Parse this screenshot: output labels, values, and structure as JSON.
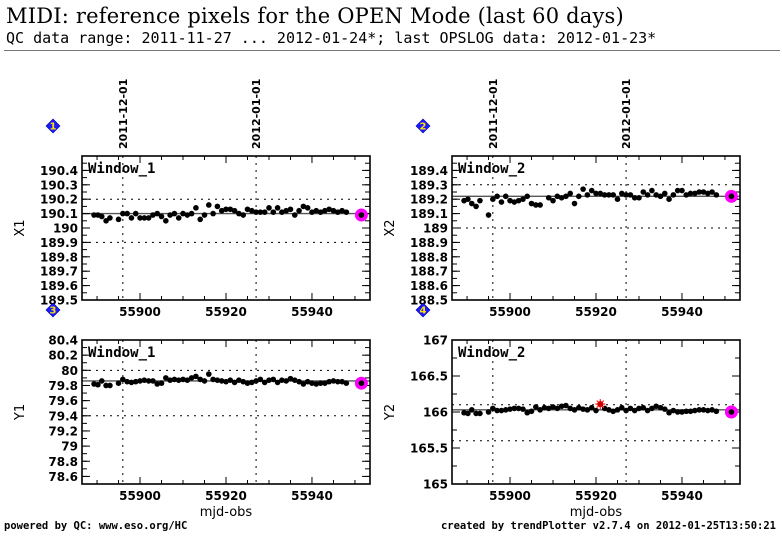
{
  "header": {
    "title": "MIDI: reference pixels for the OPEN Mode (last 60 days)",
    "subtitle": "QC data range: 2011-11-27 ... 2012-01-24*; last OPSLOG data: 2012-01-23*"
  },
  "footer": {
    "left": "powered by QC: www.eso.org/HC",
    "right": "created by trendPlotter v2.7.4 on 2012-01-25T13:50:21"
  },
  "colors": {
    "points": "#000000",
    "latest_highlight": "#ff00ff",
    "outlier": "#cc0000",
    "badge": "#1a1aff",
    "badge_text": "#ffe000",
    "grid": "#000000",
    "reference_line": "#555555"
  },
  "chart_data": [
    {
      "type": "scatter",
      "badge": "1",
      "panel_label": "Window_1",
      "xlabel": "",
      "ylabel": "X1",
      "xlim": [
        55886.5,
        55953.5
      ],
      "ylim": [
        189.5,
        190.5
      ],
      "xticks": [
        55900,
        55920,
        55940
      ],
      "xtick_labels": [
        "55900",
        "55920",
        "55940"
      ],
      "show_xtick_labels": true,
      "yticks": [
        189.5,
        189.6,
        189.7,
        189.8,
        189.9,
        190,
        190.1,
        190.2,
        190.3,
        190.4
      ],
      "ytick_labels": [
        "189.5",
        "189.6",
        "189.7",
        "189.8",
        "189.9",
        "190",
        "190.1",
        "190.2",
        "190.3",
        "190.4"
      ],
      "reference": 190.1,
      "threshold_lines": [
        189.9,
        190.2
      ],
      "date_markers": [
        {
          "x": 55896,
          "label": "2011-12-01"
        },
        {
          "x": 55927,
          "label": "2012-01-01"
        }
      ],
      "show_date_labels": true,
      "x": [
        55889.3,
        55890.2,
        55891.1,
        55892.1,
        55893.0,
        55895.0,
        55896.0,
        55897.0,
        55898.0,
        55899.0,
        55900.0,
        55901.0,
        55902.0,
        55903.0,
        55904.0,
        55905.0,
        55906.0,
        55907.0,
        55908.0,
        55909.0,
        55910.0,
        55911.0,
        55912.0,
        55913.0,
        55914.0,
        55915.0,
        55916.0,
        55917.0,
        55918.0,
        55919.0,
        55920.0,
        55921.0,
        55922.0,
        55923.0,
        55924.0,
        55925.0,
        55926.0,
        55927.0,
        55928.0,
        55929.0,
        55930.0,
        55931.0,
        55932.0,
        55933.0,
        55934.0,
        55935.0,
        55936.0,
        55937.0,
        55938.0,
        55939.0,
        55940.0,
        55941.0,
        55942.0,
        55943.0,
        55944.0,
        55945.0,
        55946.0,
        55947.0,
        55948.0
      ],
      "values": [
        190.09,
        190.09,
        190.08,
        190.05,
        190.07,
        190.06,
        190.1,
        190.1,
        190.07,
        190.1,
        190.07,
        190.07,
        190.07,
        190.09,
        190.1,
        190.08,
        190.05,
        190.09,
        190.1,
        190.07,
        190.1,
        190.09,
        190.1,
        190.14,
        190.06,
        190.09,
        190.16,
        190.1,
        190.15,
        190.12,
        190.13,
        190.13,
        190.12,
        190.1,
        190.09,
        190.13,
        190.12,
        190.11,
        190.11,
        190.11,
        190.14,
        190.11,
        190.14,
        190.11,
        190.12,
        190.13,
        190.09,
        190.12,
        190.15,
        190.14,
        190.11,
        190.12,
        190.11,
        190.12,
        190.13,
        190.12,
        190.11,
        190.12,
        190.11
      ],
      "latest": {
        "x": 55951.5,
        "value": 190.09
      }
    },
    {
      "type": "scatter",
      "badge": "2",
      "panel_label": "Window_2",
      "xlabel": "",
      "ylabel": "X2",
      "xlim": [
        55886.5,
        55953.5
      ],
      "ylim": [
        188.5,
        189.5
      ],
      "xticks": [
        55900,
        55920,
        55940
      ],
      "xtick_labels": [
        "55900",
        "55920",
        "55940"
      ],
      "show_xtick_labels": true,
      "yticks": [
        188.5,
        188.6,
        188.7,
        188.8,
        188.9,
        189,
        189.1,
        189.2,
        189.3,
        189.4
      ],
      "ytick_labels": [
        "188.5",
        "188.6",
        "188.7",
        "188.8",
        "188.9",
        "189",
        "189.1",
        "189.2",
        "189.3",
        "189.4"
      ],
      "reference": 189.22,
      "threshold_lines": [
        189.0,
        189.3
      ],
      "date_markers": [
        {
          "x": 55896,
          "label": "2011-12-01"
        },
        {
          "x": 55927,
          "label": "2012-01-01"
        }
      ],
      "show_date_labels": true,
      "x": [
        55889.3,
        55890.2,
        55891.1,
        55892.1,
        55893.0,
        55895.0,
        55896.0,
        55897.0,
        55898.0,
        55899.0,
        55900.0,
        55901.0,
        55902.0,
        55903.0,
        55904.0,
        55905.0,
        55906.0,
        55907.0,
        55909.0,
        55910.0,
        55911.0,
        55912.0,
        55913.0,
        55914.0,
        55915.0,
        55916.0,
        55917.0,
        55918.0,
        55919.0,
        55920.0,
        55921.0,
        55922.0,
        55923.0,
        55924.0,
        55925.0,
        55926.0,
        55927.0,
        55928.0,
        55929.0,
        55930.0,
        55931.0,
        55932.0,
        55933.0,
        55934.0,
        55935.0,
        55936.0,
        55937.0,
        55938.0,
        55939.0,
        55940.0,
        55941.0,
        55942.0,
        55943.0,
        55944.0,
        55945.0,
        55946.0,
        55947.0,
        55948.0
      ],
      "values": [
        189.19,
        189.2,
        189.17,
        189.15,
        189.19,
        189.09,
        189.2,
        189.22,
        189.18,
        189.22,
        189.19,
        189.18,
        189.19,
        189.2,
        189.22,
        189.17,
        189.16,
        189.16,
        189.21,
        189.19,
        189.22,
        189.21,
        189.22,
        189.24,
        189.17,
        189.22,
        189.27,
        189.23,
        189.26,
        189.24,
        189.24,
        189.23,
        189.23,
        189.23,
        189.2,
        189.24,
        189.23,
        189.23,
        189.21,
        189.21,
        189.25,
        189.23,
        189.26,
        189.23,
        189.22,
        189.24,
        189.2,
        189.23,
        189.26,
        189.26,
        189.23,
        189.24,
        189.24,
        189.25,
        189.25,
        189.24,
        189.25,
        189.23
      ],
      "latest": {
        "x": 55951.5,
        "value": 189.22
      }
    },
    {
      "type": "scatter",
      "badge": "3",
      "panel_label": "Window_1",
      "xlabel": "mjd-obs",
      "ylabel": "Y1",
      "xlim": [
        55886.5,
        55953.5
      ],
      "ylim": [
        78.5,
        80.4
      ],
      "xticks": [
        55900,
        55920,
        55940
      ],
      "xtick_labels": [
        "55900",
        "55920",
        "55940"
      ],
      "show_xtick_labels": true,
      "yticks": [
        78.6,
        78.8,
        79,
        79.2,
        79.4,
        79.6,
        79.8,
        80,
        80.2,
        80.4
      ],
      "ytick_labels": [
        "78.6",
        "78.8",
        "79",
        "79.2",
        "79.4",
        "79.6",
        "79.8",
        "80",
        "80.2",
        "80.4"
      ],
      "reference": 79.86,
      "threshold_lines": [
        79.4,
        80.0
      ],
      "date_markers": [
        {
          "x": 55896,
          "label": "2011-12-01"
        },
        {
          "x": 55927,
          "label": "2012-01-01"
        }
      ],
      "show_date_labels": false,
      "x": [
        55889.3,
        55890.2,
        55891.1,
        55892.1,
        55893.0,
        55895.0,
        55896.0,
        55897.0,
        55898.0,
        55899.0,
        55900.0,
        55901.0,
        55902.0,
        55903.0,
        55904.0,
        55905.0,
        55906.0,
        55907.0,
        55908.0,
        55909.0,
        55910.0,
        55911.0,
        55912.0,
        55913.0,
        55914.0,
        55915.0,
        55916.0,
        55917.0,
        55918.0,
        55919.0,
        55920.0,
        55921.0,
        55922.0,
        55923.0,
        55924.0,
        55925.0,
        55926.0,
        55927.0,
        55928.0,
        55929.0,
        55930.0,
        55931.0,
        55932.0,
        55933.0,
        55934.0,
        55935.0,
        55936.0,
        55937.0,
        55938.0,
        55939.0,
        55940.0,
        55941.0,
        55942.0,
        55943.0,
        55944.0,
        55945.0,
        55946.0,
        55947.0,
        55948.0
      ],
      "values": [
        79.82,
        79.81,
        79.86,
        79.8,
        79.8,
        79.83,
        79.88,
        79.85,
        79.84,
        79.85,
        79.86,
        79.87,
        79.86,
        79.86,
        79.82,
        79.83,
        79.9,
        79.87,
        79.88,
        79.87,
        79.88,
        79.87,
        79.9,
        79.92,
        79.88,
        79.86,
        79.95,
        79.88,
        79.87,
        79.86,
        79.85,
        79.87,
        79.84,
        79.87,
        79.85,
        79.83,
        79.84,
        79.86,
        79.88,
        79.84,
        79.87,
        79.88,
        79.84,
        79.87,
        79.86,
        79.89,
        79.87,
        79.85,
        79.82,
        79.85,
        79.83,
        79.82,
        79.83,
        79.83,
        79.85,
        79.86,
        79.85,
        79.85,
        79.83
      ],
      "latest": {
        "x": 55951.5,
        "value": 79.83
      }
    },
    {
      "type": "scatter",
      "badge": "4",
      "panel_label": "Window_2",
      "xlabel": "mjd-obs",
      "ylabel": "Y2",
      "xlim": [
        55886.5,
        55953.5
      ],
      "ylim": [
        165,
        167
      ],
      "xticks": [
        55900,
        55920,
        55940
      ],
      "xtick_labels": [
        "55900",
        "55920",
        "55940"
      ],
      "show_xtick_labels": true,
      "yticks": [
        165,
        165.5,
        166,
        166.5,
        167
      ],
      "ytick_labels": [
        "165",
        "165.5",
        "166",
        "166.5",
        "167"
      ],
      "reference": 166.03,
      "threshold_lines": [
        165.6,
        166.1
      ],
      "date_markers": [
        {
          "x": 55896,
          "label": "2011-12-01"
        },
        {
          "x": 55927,
          "label": "2012-01-01"
        }
      ],
      "show_date_labels": false,
      "x": [
        55889.3,
        55890.2,
        55891.1,
        55892.1,
        55893.0,
        55895.0,
        55896.0,
        55897.0,
        55898.0,
        55899.0,
        55900.0,
        55901.0,
        55902.0,
        55903.0,
        55904.0,
        55905.0,
        55906.0,
        55907.0,
        55908.0,
        55909.0,
        55910.0,
        55911.0,
        55912.0,
        55913.0,
        55914.0,
        55915.0,
        55916.0,
        55917.0,
        55918.0,
        55919.0,
        55920.0,
        55922.0,
        55923.0,
        55924.0,
        55925.0,
        55926.0,
        55927.0,
        55928.0,
        55929.0,
        55930.0,
        55931.0,
        55932.0,
        55933.0,
        55934.0,
        55935.0,
        55936.0,
        55937.0,
        55938.0,
        55939.0,
        55940.0,
        55941.0,
        55942.0,
        55943.0,
        55944.0,
        55945.0,
        55946.0,
        55947.0,
        55948.0
      ],
      "values": [
        165.99,
        165.98,
        166.03,
        165.98,
        165.98,
        166.0,
        166.05,
        166.02,
        166.02,
        166.03,
        166.04,
        166.05,
        166.05,
        166.04,
        165.99,
        166.01,
        166.07,
        166.03,
        166.06,
        166.05,
        166.07,
        166.05,
        166.08,
        166.09,
        166.05,
        166.03,
        166.06,
        166.04,
        166.03,
        166.06,
        166.02,
        166.05,
        166.03,
        166.01,
        166.03,
        166.06,
        166.02,
        166.05,
        166.02,
        166.05,
        166.06,
        166.02,
        166.05,
        166.08,
        166.06,
        166.04,
        165.99,
        166.02,
        166.0,
        166.0,
        166.01,
        166.01,
        166.02,
        166.03,
        166.03,
        166.02,
        166.03,
        166.01
      ],
      "outliers": [
        {
          "x": 55921.0,
          "value": 166.11
        }
      ],
      "latest": {
        "x": 55951.5,
        "value": 166.0
      }
    }
  ]
}
